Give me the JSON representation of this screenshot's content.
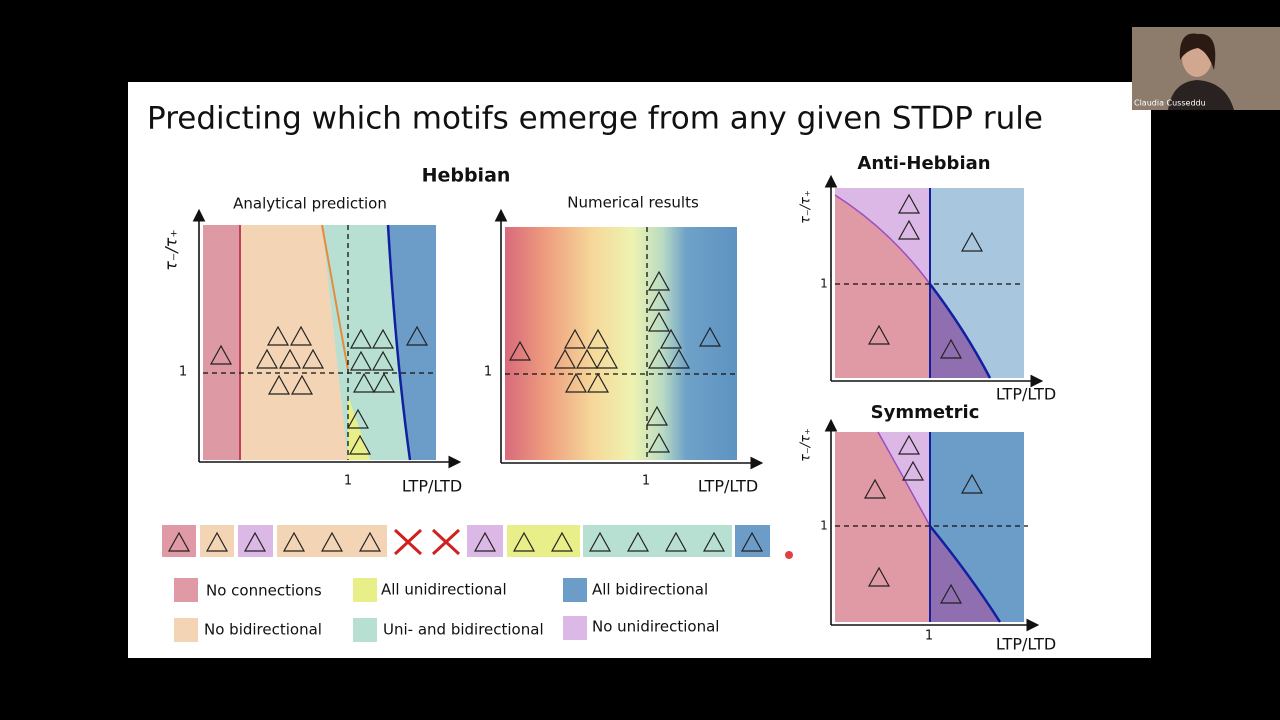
{
  "slide": {
    "title": "Predicting which motifs emerge from any given STDP rule",
    "hebbian": {
      "title": "Hebbian",
      "panels": [
        {
          "title": "Analytical prediction",
          "y_label": "τ₋/τ₊",
          "x_label": "LTP/LTD",
          "x_tick": "1",
          "y_tick": "1"
        },
        {
          "title": "Numerical results",
          "x_label": "LTP/LTD",
          "x_tick": "1",
          "y_tick": "1"
        }
      ]
    },
    "anti_hebbian": {
      "title": "Anti-Hebbian",
      "y_label": "τ₋/τ₊",
      "x_label": "LTP/LTD",
      "y_tick": "1"
    },
    "symmetric": {
      "title": "Symmetric",
      "y_label": "τ₋/τ₊",
      "x_label": "LTP/LTD",
      "x_tick": "1",
      "y_tick": "1"
    },
    "legend": [
      "No connections",
      "No bidirectional",
      "All unidirectional",
      "Uni- and bidirectional",
      "All bidirectional",
      "No unidirectional"
    ]
  },
  "webcam": {
    "name": "Claudia Cusseddu"
  }
}
